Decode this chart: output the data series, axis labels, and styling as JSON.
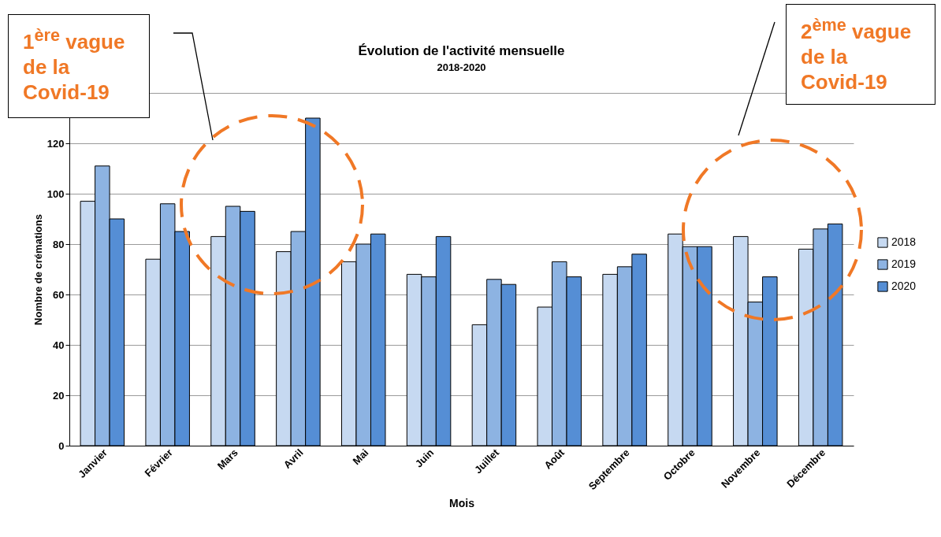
{
  "chart_data": {
    "type": "bar",
    "title": "Évolution de l'activité mensuelle",
    "subtitle": "2018-2020",
    "xlabel": "Mois",
    "ylabel": "Nombre de crémations",
    "categories": [
      "Janvier",
      "Février",
      "Mars",
      "Avril",
      "Mai",
      "Juin",
      "Juillet",
      "Août",
      "Septembre",
      "Octobre",
      "Novembre",
      "Décembre"
    ],
    "series": [
      {
        "name": "2018",
        "color": "#c6d9f1",
        "values": [
          97,
          74,
          83,
          77,
          73,
          68,
          48,
          55,
          68,
          84,
          83,
          78
        ]
      },
      {
        "name": "2019",
        "color": "#8db3e2",
        "values": [
          111,
          96,
          95,
          85,
          80,
          67,
          66,
          73,
          71,
          79,
          57,
          86
        ]
      },
      {
        "name": "2020",
        "color": "#558ed5",
        "values": [
          90,
          85,
          93,
          130,
          84,
          83,
          64,
          67,
          76,
          79,
          67,
          88
        ]
      }
    ],
    "ylim": [
      0,
      140
    ],
    "yticks": [
      0,
      20,
      40,
      60,
      80,
      100,
      120,
      {
        "value": 140,
        "label": null
      }
    ],
    "grid": "y",
    "legend": "right",
    "annotations": [
      "1$^{ère}$ vague de la Covid-19",
      "2$^{ème}$ vague de la Covid-19"
    ]
  }
}
